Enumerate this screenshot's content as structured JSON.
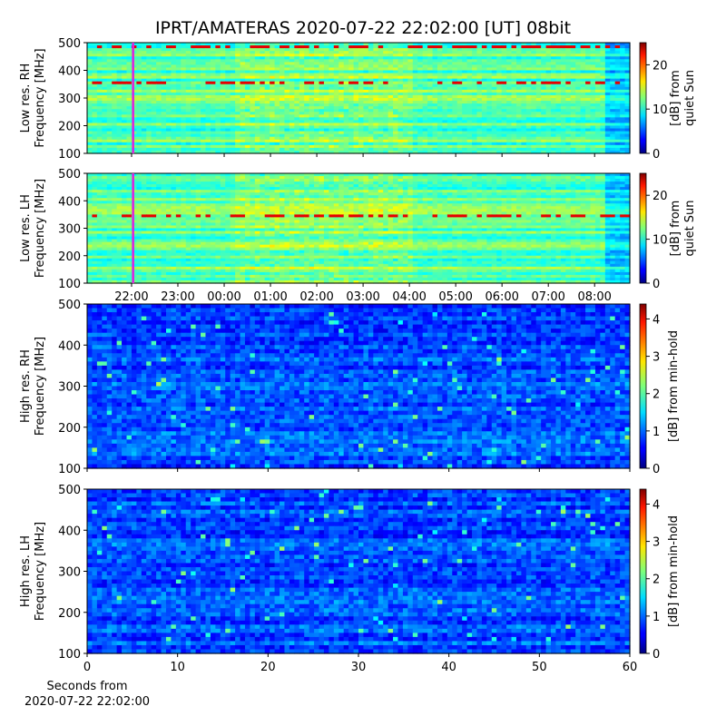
{
  "title": "IPRT/AMATERAS 2020-07-22 22:02:00 [UT]   08bit",
  "chart_data": [
    {
      "type": "heatmap",
      "colormap": "jet",
      "ylabel": [
        "Low res. RH",
        "Frequency [MHz]"
      ],
      "xlim": [
        21.04,
        32.76
      ],
      "xticks": [
        22,
        23,
        24,
        25,
        26,
        27,
        28,
        29,
        30,
        31,
        32
      ],
      "show_xtick_labels": false,
      "ylim": [
        100,
        500
      ],
      "yticks": [
        100,
        200,
        300,
        400,
        500
      ],
      "marker": {
        "x": 22.033,
        "color": "#e020e0"
      },
      "colorbar": {
        "label": [
          "[dB] from",
          "quiet Sun"
        ],
        "lim": [
          0,
          25
        ],
        "ticks": [
          0,
          10,
          20
        ]
      }
    },
    {
      "type": "heatmap",
      "colormap": "jet",
      "ylabel": [
        "Low res. LH",
        "Frequency [MHz]"
      ],
      "xlim": [
        21.04,
        32.76
      ],
      "xticks": [
        {
          "value": 22,
          "label": "22:00"
        },
        {
          "value": 23,
          "label": "23:00"
        },
        {
          "value": 24,
          "label": "00:00"
        },
        {
          "value": 25,
          "label": "01:00"
        },
        {
          "value": 26,
          "label": "02:00"
        },
        {
          "value": 27,
          "label": "03:00"
        },
        {
          "value": 28,
          "label": "04:00"
        },
        {
          "value": 29,
          "label": "05:00"
        },
        {
          "value": 30,
          "label": "06:00"
        },
        {
          "value": 31,
          "label": "07:00"
        },
        {
          "value": 32,
          "label": "08:00"
        }
      ],
      "show_xtick_labels": true,
      "ylim": [
        100,
        500
      ],
      "yticks": [
        100,
        200,
        300,
        400,
        500
      ],
      "marker": {
        "x": 22.033,
        "color": "#e020e0"
      },
      "colorbar": {
        "label": [
          "[dB] from",
          "quiet Sun"
        ],
        "lim": [
          0,
          25
        ],
        "ticks": [
          0,
          10,
          20
        ]
      }
    },
    {
      "type": "heatmap",
      "colormap": "jet",
      "ylabel": [
        "High res. RH",
        "Frequency [MHz]"
      ],
      "xlim": [
        0,
        60
      ],
      "xticks": [
        0,
        10,
        20,
        30,
        40,
        50,
        60
      ],
      "show_xtick_labels": false,
      "ylim": [
        100,
        500
      ],
      "yticks": [
        100,
        200,
        300,
        400,
        500
      ],
      "colorbar": {
        "label": [
          "[dB] from min-hold"
        ],
        "lim": [
          0,
          4.4
        ],
        "ticks": [
          0,
          1,
          2,
          3,
          4
        ]
      }
    },
    {
      "type": "heatmap",
      "colormap": "jet",
      "ylabel": [
        "High res. LH",
        "Frequency [MHz]"
      ],
      "xlim": [
        0,
        60
      ],
      "xticks": [
        0,
        10,
        20,
        30,
        40,
        50,
        60
      ],
      "show_xtick_labels": true,
      "xlabel": [
        "Seconds from",
        "2020-07-22 22:02:00"
      ],
      "ylim": [
        100,
        500
      ],
      "yticks": [
        100,
        200,
        300,
        400,
        500
      ],
      "colorbar": {
        "label": [
          "[dB] from min-hold"
        ],
        "lim": [
          0,
          4.4
        ],
        "ticks": [
          0,
          1,
          2,
          3,
          4
        ]
      }
    }
  ]
}
